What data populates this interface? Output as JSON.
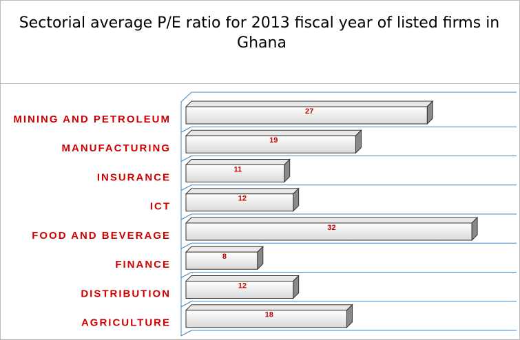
{
  "chart_data": {
    "type": "bar",
    "orientation": "horizontal",
    "title": "Sectorial average P/E ratio for 2013 fiscal year of listed firms in Ghana",
    "categories": [
      "MINING AND PETROLEUM",
      "MANUFACTURING",
      "INSURANCE",
      "ICT",
      "FOOD AND BEVERAGE",
      "FINANCE",
      "DISTRIBUTION",
      "AGRICULTURE"
    ],
    "values": [
      27,
      19,
      11,
      12,
      32,
      8,
      12,
      18
    ],
    "color": "#f4f4f4",
    "xlim": [
      0,
      35
    ]
  }
}
